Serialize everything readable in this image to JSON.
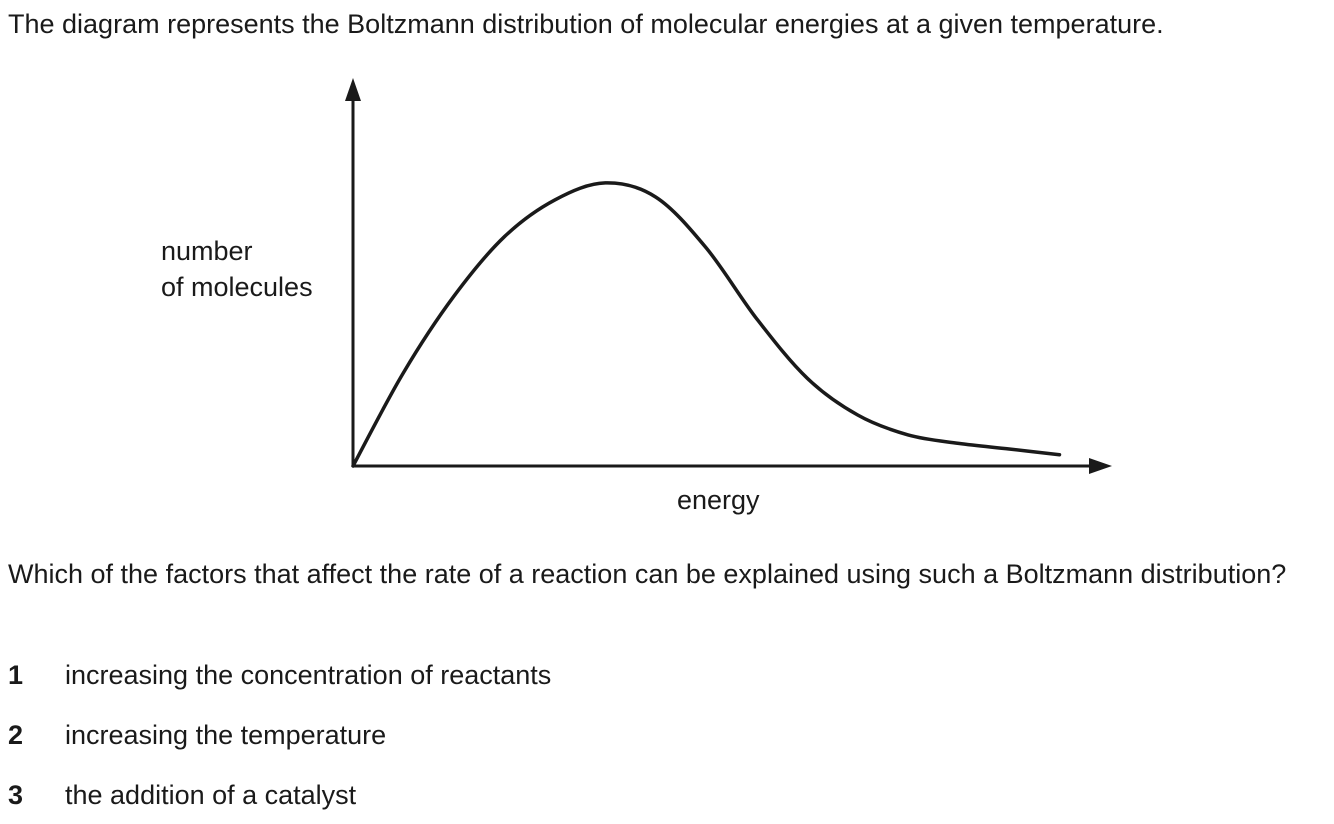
{
  "intro_text": "The diagram represents the Boltzmann distribution of molecular energies at a given temperature.",
  "chart_data": {
    "type": "line",
    "title": "",
    "ylabel": [
      "number",
      "of molecules"
    ],
    "xlabel": "energy",
    "x_ticks": [],
    "y_ticks": [],
    "grid": false,
    "series": [
      {
        "x": [
          0,
          1,
          2,
          3,
          4,
          5,
          6,
          7,
          8,
          9,
          10,
          11,
          12,
          13,
          14
        ],
        "values": [
          0,
          3.3,
          6.0,
          8.1,
          9.4,
          10.0,
          9.5,
          7.7,
          5.2,
          3.1,
          1.8,
          1.1,
          0.8,
          0.6,
          0.4
        ]
      }
    ],
    "xlim": [
      0,
      15
    ],
    "ylim": [
      0,
      13
    ]
  },
  "question": "Which of the factors that affect the rate of a reaction can be explained using such a Boltzmann distribution?",
  "options": [
    {
      "number": "1",
      "text": "increasing the concentration of reactants"
    },
    {
      "number": "2",
      "text": "increasing the temperature"
    },
    {
      "number": "3",
      "text": "the addition of a catalyst"
    }
  ]
}
